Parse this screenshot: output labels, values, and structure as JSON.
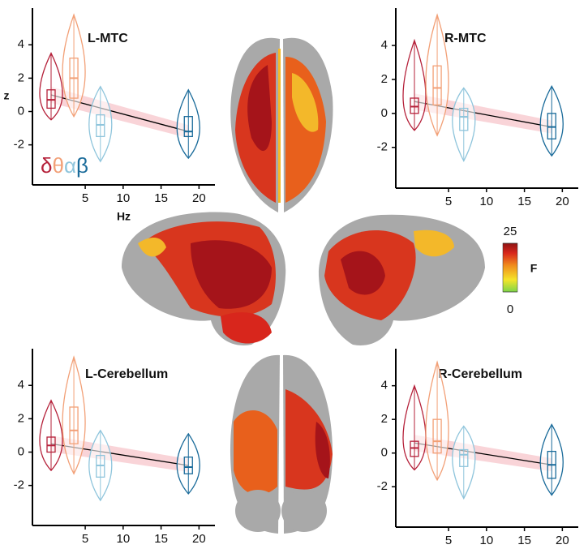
{
  "chart_data": [
    {
      "type": "violin",
      "title": "L-MTC",
      "x_label": "Hz",
      "y_label": "z",
      "xlim": [
        -1.96,
        22.1
      ],
      "ylim": [
        -4.4,
        6.2
      ],
      "xticks": [
        5,
        10,
        15,
        20
      ],
      "yticks": [
        -2,
        0,
        2,
        4
      ],
      "x": [
        0.5,
        3.5,
        7,
        18.6
      ],
      "series": [
        {
          "name": "δ",
          "color": "#b5213a",
          "min": -0.5,
          "q1": 0.2,
          "median": 0.7,
          "q3": 1.3,
          "max": 3.5
        },
        {
          "name": "θ",
          "color": "#f2a077",
          "min": -0.3,
          "q1": 0.8,
          "median": 2.0,
          "q3": 3.2,
          "max": 5.8
        },
        {
          "name": "α",
          "color": "#8fc5dc",
          "min": -3.0,
          "q1": -1.5,
          "median": -0.8,
          "q3": -0.2,
          "max": 1.5
        },
        {
          "name": "β",
          "color": "#1a6b9a",
          "min": -2.8,
          "q1": -1.5,
          "median": -1.2,
          "q3": -0.3,
          "max": 1.3
        }
      ],
      "fit": [
        1.0,
        -1.2
      ]
    },
    {
      "type": "violin",
      "title": "R-MTC",
      "xlim": [
        -1.96,
        22.1
      ],
      "ylim": [
        -4.4,
        6.2
      ],
      "xticks": [
        5,
        10,
        15,
        20
      ],
      "yticks": [
        -2,
        0,
        2,
        4
      ],
      "x": [
        0.5,
        3.5,
        7,
        18.6
      ],
      "series": [
        {
          "color": "#b5213a",
          "min": -1.0,
          "q1": 0.0,
          "median": 0.4,
          "q3": 0.9,
          "max": 4.3
        },
        {
          "color": "#f2a077",
          "min": -1.3,
          "q1": 0.5,
          "median": 1.5,
          "q3": 2.8,
          "max": 5.8
        },
        {
          "color": "#8fc5dc",
          "min": -2.8,
          "q1": -1.0,
          "median": -0.2,
          "q3": 0.3,
          "max": 1.5
        },
        {
          "color": "#1a6b9a",
          "min": -2.5,
          "q1": -1.5,
          "median": -0.8,
          "q3": 0.0,
          "max": 1.6
        }
      ],
      "fit": [
        0.7,
        -0.8
      ]
    },
    {
      "type": "violin",
      "title": "L-Cerebellum",
      "xlim": [
        -1.96,
        22.1
      ],
      "ylim": [
        -4.4,
        6.2
      ],
      "xticks": [
        5,
        10,
        15,
        20
      ],
      "yticks": [
        -2,
        0,
        2,
        4
      ],
      "x": [
        0.5,
        3.5,
        7,
        18.6
      ],
      "series": [
        {
          "color": "#b5213a",
          "min": -1.1,
          "q1": 0.0,
          "median": 0.4,
          "q3": 0.9,
          "max": 3.1
        },
        {
          "color": "#f2a077",
          "min": -1.3,
          "q1": 0.5,
          "median": 1.3,
          "q3": 2.7,
          "max": 5.7
        },
        {
          "color": "#8fc5dc",
          "min": -2.9,
          "q1": -1.5,
          "median": -0.8,
          "q3": -0.2,
          "max": 1.3
        },
        {
          "color": "#1a6b9a",
          "min": -2.5,
          "q1": -1.3,
          "median": -0.9,
          "q3": -0.3,
          "max": 1.1
        }
      ],
      "fit": [
        0.5,
        -0.8
      ]
    },
    {
      "type": "violin",
      "title": "R-Cerebellum",
      "xlim": [
        -1.96,
        22.1
      ],
      "ylim": [
        -4.4,
        6.2
      ],
      "xticks": [
        5,
        10,
        15,
        20
      ],
      "yticks": [
        -2,
        0,
        2,
        4
      ],
      "x": [
        0.5,
        3.5,
        7,
        18.6
      ],
      "series": [
        {
          "color": "#b5213a",
          "min": -1.0,
          "q1": -0.2,
          "median": 0.3,
          "q3": 0.7,
          "max": 4.0
        },
        {
          "color": "#f2a077",
          "min": -1.6,
          "q1": 0.0,
          "median": 0.7,
          "q3": 2.0,
          "max": 5.4
        },
        {
          "color": "#8fc5dc",
          "min": -2.7,
          "q1": -0.8,
          "median": -0.1,
          "q3": 0.2,
          "max": 1.6
        },
        {
          "color": "#1a6b9a",
          "min": -2.5,
          "q1": -1.5,
          "median": -0.7,
          "q3": 0.1,
          "max": 1.7
        }
      ],
      "fit": [
        0.6,
        -0.7
      ]
    }
  ],
  "colorbar": {
    "label": "F",
    "lim": [
      0,
      25
    ],
    "ticks": [
      0,
      25
    ]
  }
}
